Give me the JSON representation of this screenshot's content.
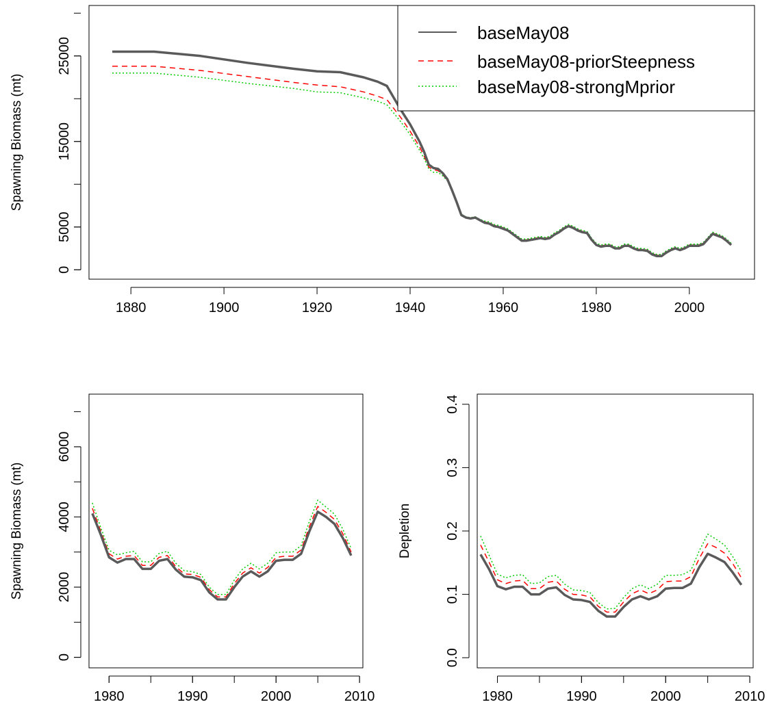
{
  "chart_data": [
    {
      "type": "line",
      "ylabel": "Spawning Biomass (mt)",
      "xticks": [
        "1880",
        "1900",
        "1920",
        "1940",
        "1960",
        "1980",
        "2000"
      ],
      "yticks": [
        "0",
        "5000",
        "15000",
        "25000"
      ],
      "xlim": [
        1871,
        2014
      ],
      "ylim": [
        -1100,
        30900
      ],
      "legend": {
        "position": "top-right",
        "entries": [
          "baseMay08",
          "baseMay08-priorSteepness",
          "baseMay08-strongMprior"
        ]
      },
      "series": [
        {
          "name": "baseMay08",
          "color": "#5a5a5a",
          "style": "solid",
          "x": [
            1876,
            1885,
            1895,
            1905,
            1915,
            1920,
            1925,
            1930,
            1933,
            1935,
            1938,
            1940,
            1942,
            1943,
            1944,
            1945,
            1946,
            1947,
            1948,
            1949,
            1950,
            1951,
            1952,
            1953,
            1954,
            1955,
            1956,
            1957,
            1958,
            1959,
            1960,
            1961,
            1962,
            1963,
            1964,
            1965,
            1966,
            1967,
            1968,
            1969,
            1970,
            1971,
            1972,
            1973,
            1974,
            1975,
            1976,
            1977,
            1978,
            1979,
            1980,
            1981,
            1982,
            1983,
            1984,
            1985,
            1986,
            1987,
            1988,
            1989,
            1990,
            1991,
            1992,
            1993,
            1994,
            1995,
            1996,
            1997,
            1998,
            1999,
            2000,
            2001,
            2002,
            2003,
            2004,
            2005,
            2006,
            2007,
            2008,
            2009
          ],
          "y": [
            25500,
            25500,
            25000,
            24200,
            23500,
            23200,
            23100,
            22500,
            22000,
            21500,
            18700,
            17000,
            15000,
            13800,
            12300,
            11900,
            11800,
            11300,
            10600,
            9300,
            7900,
            6400,
            6100,
            6000,
            6100,
            5800,
            5500,
            5400,
            5100,
            5000,
            4800,
            4600,
            4200,
            3800,
            3400,
            3400,
            3500,
            3600,
            3700,
            3600,
            3700,
            4100,
            4400,
            4800,
            5100,
            4900,
            4600,
            4400,
            4300,
            3500,
            2900,
            2700,
            2800,
            2800,
            2500,
            2500,
            2800,
            2800,
            2500,
            2300,
            2300,
            2200,
            1800,
            1600,
            1600,
            2000,
            2300,
            2500,
            2300,
            2500,
            2800,
            2800,
            2800,
            3000,
            3600,
            4200,
            4000,
            3800,
            3400,
            2900
          ]
        },
        {
          "name": "baseMay08-priorSteepness",
          "color": "#ff0000",
          "style": "dashed",
          "x": [
            1876,
            1885,
            1895,
            1905,
            1915,
            1920,
            1925,
            1930,
            1933,
            1935,
            1938,
            1940,
            1942,
            1943,
            1944,
            1945,
            1946,
            1947,
            1948,
            1949,
            1950,
            1951,
            1952,
            1953,
            1954,
            1955,
            1956,
            1957,
            1958,
            1959,
            1960,
            1961,
            1962,
            1963,
            1964,
            1965,
            1966,
            1967,
            1968,
            1969,
            1970,
            1971,
            1972,
            1973,
            1974,
            1975,
            1976,
            1977,
            1978,
            1979,
            1980,
            1981,
            1982,
            1983,
            1984,
            1985,
            1986,
            1987,
            1988,
            1989,
            1990,
            1991,
            1992,
            1993,
            1994,
            1995,
            1996,
            1997,
            1998,
            1999,
            2000,
            2001,
            2002,
            2003,
            2004,
            2005,
            2006,
            2007,
            2008,
            2009
          ],
          "y": [
            23800,
            23800,
            23300,
            22600,
            21900,
            21600,
            21400,
            20800,
            20300,
            19900,
            17800,
            16200,
            14400,
            13300,
            12000,
            11700,
            11600,
            11100,
            10500,
            9200,
            7800,
            6400,
            6100,
            6000,
            6100,
            5800,
            5600,
            5500,
            5200,
            5100,
            4900,
            4700,
            4300,
            3900,
            3500,
            3500,
            3600,
            3700,
            3800,
            3700,
            3800,
            4200,
            4500,
            4900,
            5200,
            5000,
            4700,
            4500,
            4400,
            3600,
            3000,
            2800,
            2900,
            2900,
            2600,
            2600,
            2900,
            2900,
            2600,
            2400,
            2400,
            2300,
            1900,
            1700,
            1700,
            2100,
            2400,
            2600,
            2400,
            2600,
            2900,
            2900,
            2900,
            3100,
            3700,
            4300,
            4100,
            3900,
            3500,
            3000
          ]
        },
        {
          "name": "baseMay08-strongMprior",
          "color": "#00cc00",
          "style": "dotted",
          "x": [
            1876,
            1885,
            1895,
            1905,
            1915,
            1920,
            1925,
            1930,
            1933,
            1935,
            1938,
            1940,
            1942,
            1943,
            1944,
            1945,
            1946,
            1947,
            1948,
            1949,
            1950,
            1951,
            1952,
            1953,
            1954,
            1955,
            1956,
            1957,
            1958,
            1959,
            1960,
            1961,
            1962,
            1963,
            1964,
            1965,
            1966,
            1967,
            1968,
            1969,
            1970,
            1971,
            1972,
            1973,
            1974,
            1975,
            1976,
            1977,
            1978,
            1979,
            1980,
            1981,
            1982,
            1983,
            1984,
            1985,
            1986,
            1987,
            1988,
            1989,
            1990,
            1991,
            1992,
            1993,
            1994,
            1995,
            1996,
            1997,
            1998,
            1999,
            2000,
            2001,
            2002,
            2003,
            2004,
            2005,
            2006,
            2007,
            2008,
            2009
          ],
          "y": [
            23000,
            23000,
            22500,
            21800,
            21200,
            20800,
            20700,
            20100,
            19700,
            19300,
            17300,
            15800,
            14000,
            13000,
            11800,
            11400,
            11400,
            11000,
            10400,
            9200,
            7800,
            6500,
            6200,
            6100,
            6200,
            5900,
            5700,
            5600,
            5300,
            5200,
            5000,
            4800,
            4400,
            4000,
            3600,
            3600,
            3700,
            3800,
            3900,
            3800,
            3900,
            4300,
            4600,
            5000,
            5300,
            5100,
            4800,
            4600,
            4500,
            3700,
            3100,
            2900,
            3000,
            3000,
            2700,
            2700,
            3000,
            3000,
            2700,
            2500,
            2500,
            2400,
            2000,
            1800,
            1800,
            2200,
            2500,
            2700,
            2500,
            2700,
            3000,
            3000,
            3000,
            3200,
            3800,
            4400,
            4200,
            4000,
            3600,
            3100
          ]
        }
      ]
    },
    {
      "type": "line",
      "ylabel": "Spawning Biomass (mt)",
      "xticks": [
        "1980",
        "1990",
        "2000",
        "2010"
      ],
      "yticks": [
        "0",
        "2000",
        "4000",
        "6000"
      ],
      "xlim": [
        1977.6,
        2010.4
      ],
      "ylim": [
        -300,
        7500
      ],
      "series": [
        {
          "name": "baseMay08",
          "color": "#5a5a5a",
          "style": "solid",
          "x": [
            1978,
            1979,
            1980,
            1981,
            1982,
            1983,
            1984,
            1985,
            1986,
            1987,
            1988,
            1989,
            1990,
            1991,
            1992,
            1993,
            1994,
            1995,
            1996,
            1997,
            1998,
            1999,
            2000,
            2001,
            2002,
            2003,
            2004,
            2005,
            2006,
            2007,
            2008,
            2009
          ],
          "y": [
            4100,
            3500,
            2850,
            2700,
            2800,
            2800,
            2520,
            2520,
            2750,
            2800,
            2500,
            2300,
            2280,
            2200,
            1850,
            1650,
            1650,
            2000,
            2300,
            2450,
            2300,
            2450,
            2750,
            2780,
            2780,
            2950,
            3600,
            4150,
            4000,
            3800,
            3400,
            2900
          ]
        },
        {
          "name": "baseMay08-priorSteepness",
          "color": "#ff0000",
          "style": "dashed",
          "x": [
            1978,
            1979,
            1980,
            1981,
            1982,
            1983,
            1984,
            1985,
            1986,
            1987,
            1988,
            1989,
            1990,
            1991,
            1992,
            1993,
            1994,
            1995,
            1996,
            1997,
            1998,
            1999,
            2000,
            2001,
            2002,
            2003,
            2004,
            2005,
            2006,
            2007,
            2008,
            2009
          ],
          "y": [
            4250,
            3600,
            2950,
            2800,
            2880,
            2900,
            2620,
            2620,
            2850,
            2900,
            2580,
            2380,
            2360,
            2280,
            1930,
            1720,
            1720,
            2100,
            2400,
            2550,
            2400,
            2560,
            2850,
            2880,
            2880,
            3060,
            3730,
            4300,
            4130,
            3930,
            3520,
            3000
          ]
        },
        {
          "name": "baseMay08-strongMprior",
          "color": "#00cc00",
          "style": "dotted",
          "x": [
            1978,
            1979,
            1980,
            1981,
            1982,
            1983,
            1984,
            1985,
            1986,
            1987,
            1988,
            1989,
            1990,
            1991,
            1992,
            1993,
            1994,
            1995,
            1996,
            1997,
            1998,
            1999,
            2000,
            2001,
            2002,
            2003,
            2004,
            2005,
            2006,
            2007,
            2008,
            2009
          ],
          "y": [
            4400,
            3700,
            3050,
            2920,
            2980,
            3020,
            2720,
            2720,
            2960,
            3020,
            2680,
            2470,
            2440,
            2360,
            2000,
            1790,
            1790,
            2200,
            2520,
            2680,
            2520,
            2680,
            2980,
            3000,
            3000,
            3180,
            3880,
            4480,
            4280,
            4080,
            3650,
            3100
          ]
        }
      ]
    },
    {
      "type": "line",
      "ylabel": "Depletion",
      "xticks": [
        "1980",
        "1990",
        "2000",
        "2010"
      ],
      "yticks": [
        "0.0",
        "0.1",
        "0.2",
        "0.3",
        "0.4"
      ],
      "xlim": [
        1977.6,
        2010.4
      ],
      "ylim": [
        -0.016,
        0.416
      ],
      "series": [
        {
          "name": "baseMay08",
          "color": "#5a5a5a",
          "style": "solid",
          "x": [
            1978,
            1979,
            1980,
            1981,
            1982,
            1983,
            1984,
            1985,
            1986,
            1987,
            1988,
            1989,
            1990,
            1991,
            1992,
            1993,
            1994,
            1995,
            1996,
            1997,
            1998,
            1999,
            2000,
            2001,
            2002,
            2003,
            2004,
            2005,
            2006,
            2007,
            2008,
            2009
          ],
          "y": [
            0.163,
            0.14,
            0.113,
            0.108,
            0.112,
            0.112,
            0.1,
            0.1,
            0.109,
            0.111,
            0.099,
            0.092,
            0.091,
            0.088,
            0.074,
            0.065,
            0.065,
            0.08,
            0.092,
            0.097,
            0.092,
            0.097,
            0.109,
            0.11,
            0.11,
            0.117,
            0.143,
            0.164,
            0.158,
            0.151,
            0.134,
            0.115
          ]
        },
        {
          "name": "baseMay08-priorSteepness",
          "color": "#ff0000",
          "style": "dashed",
          "x": [
            1978,
            1979,
            1980,
            1981,
            1982,
            1983,
            1984,
            1985,
            1986,
            1987,
            1988,
            1989,
            1990,
            1991,
            1992,
            1993,
            1994,
            1995,
            1996,
            1997,
            1998,
            1999,
            2000,
            2001,
            2002,
            2003,
            2004,
            2005,
            2006,
            2007,
            2008,
            2009
          ],
          "y": [
            0.178,
            0.151,
            0.123,
            0.117,
            0.121,
            0.122,
            0.109,
            0.109,
            0.119,
            0.121,
            0.108,
            0.1,
            0.099,
            0.096,
            0.081,
            0.072,
            0.072,
            0.088,
            0.101,
            0.107,
            0.101,
            0.107,
            0.12,
            0.121,
            0.121,
            0.128,
            0.157,
            0.18,
            0.174,
            0.165,
            0.148,
            0.126
          ]
        },
        {
          "name": "baseMay08-strongMprior",
          "color": "#00cc00",
          "style": "dotted",
          "x": [
            1978,
            1979,
            1980,
            1981,
            1982,
            1983,
            1984,
            1985,
            1986,
            1987,
            1988,
            1989,
            1990,
            1991,
            1992,
            1993,
            1994,
            1995,
            1996,
            1997,
            1998,
            1999,
            2000,
            2001,
            2002,
            2003,
            2004,
            2005,
            2006,
            2007,
            2008,
            2009
          ],
          "y": [
            0.192,
            0.162,
            0.132,
            0.126,
            0.13,
            0.131,
            0.117,
            0.118,
            0.128,
            0.13,
            0.116,
            0.107,
            0.106,
            0.103,
            0.087,
            0.077,
            0.078,
            0.095,
            0.109,
            0.115,
            0.109,
            0.116,
            0.13,
            0.13,
            0.131,
            0.138,
            0.169,
            0.195,
            0.187,
            0.178,
            0.159,
            0.136
          ]
        }
      ]
    }
  ]
}
